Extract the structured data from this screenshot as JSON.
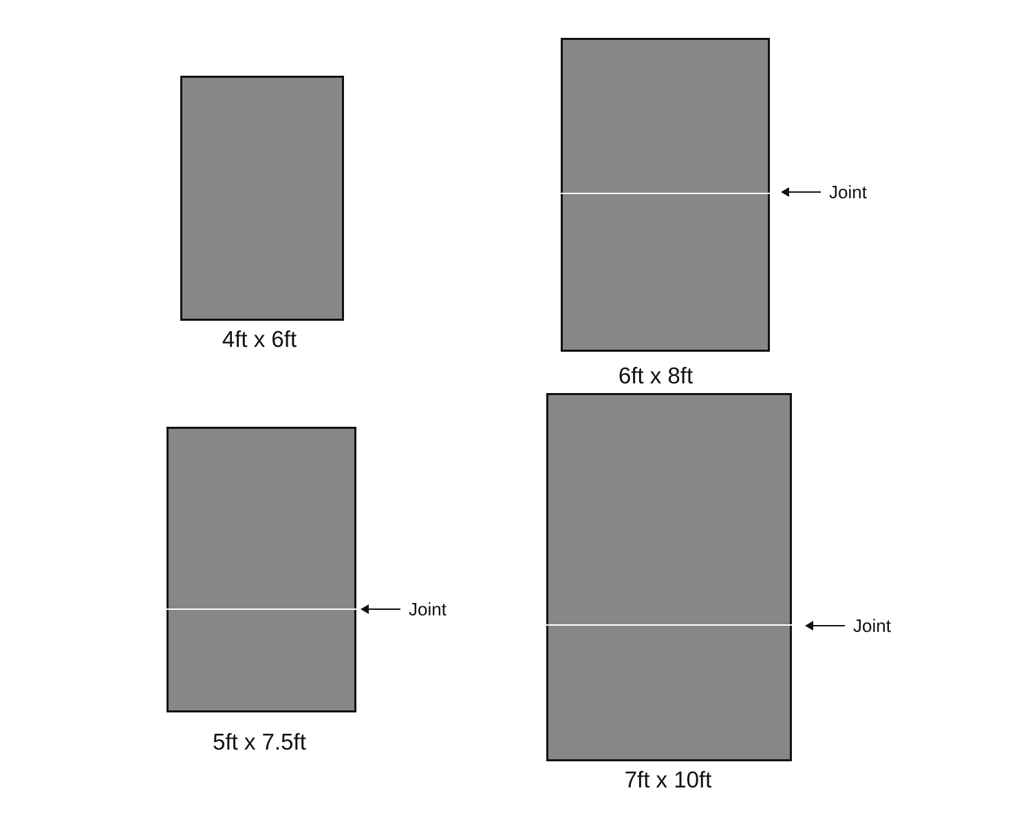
{
  "panels": [
    {
      "label": "4ft x 6ft",
      "joint": false
    },
    {
      "label": "6ft x 8ft",
      "joint": true,
      "joint_label": "Joint"
    },
    {
      "label": "5ft x 7.5ft",
      "joint": true,
      "joint_label": "Joint"
    },
    {
      "label": "7ft x 10ft",
      "joint": true,
      "joint_label": "Joint"
    }
  ],
  "colors": {
    "panel_fill": "#878787",
    "border": "#111111",
    "joint": "#ffffff"
  }
}
